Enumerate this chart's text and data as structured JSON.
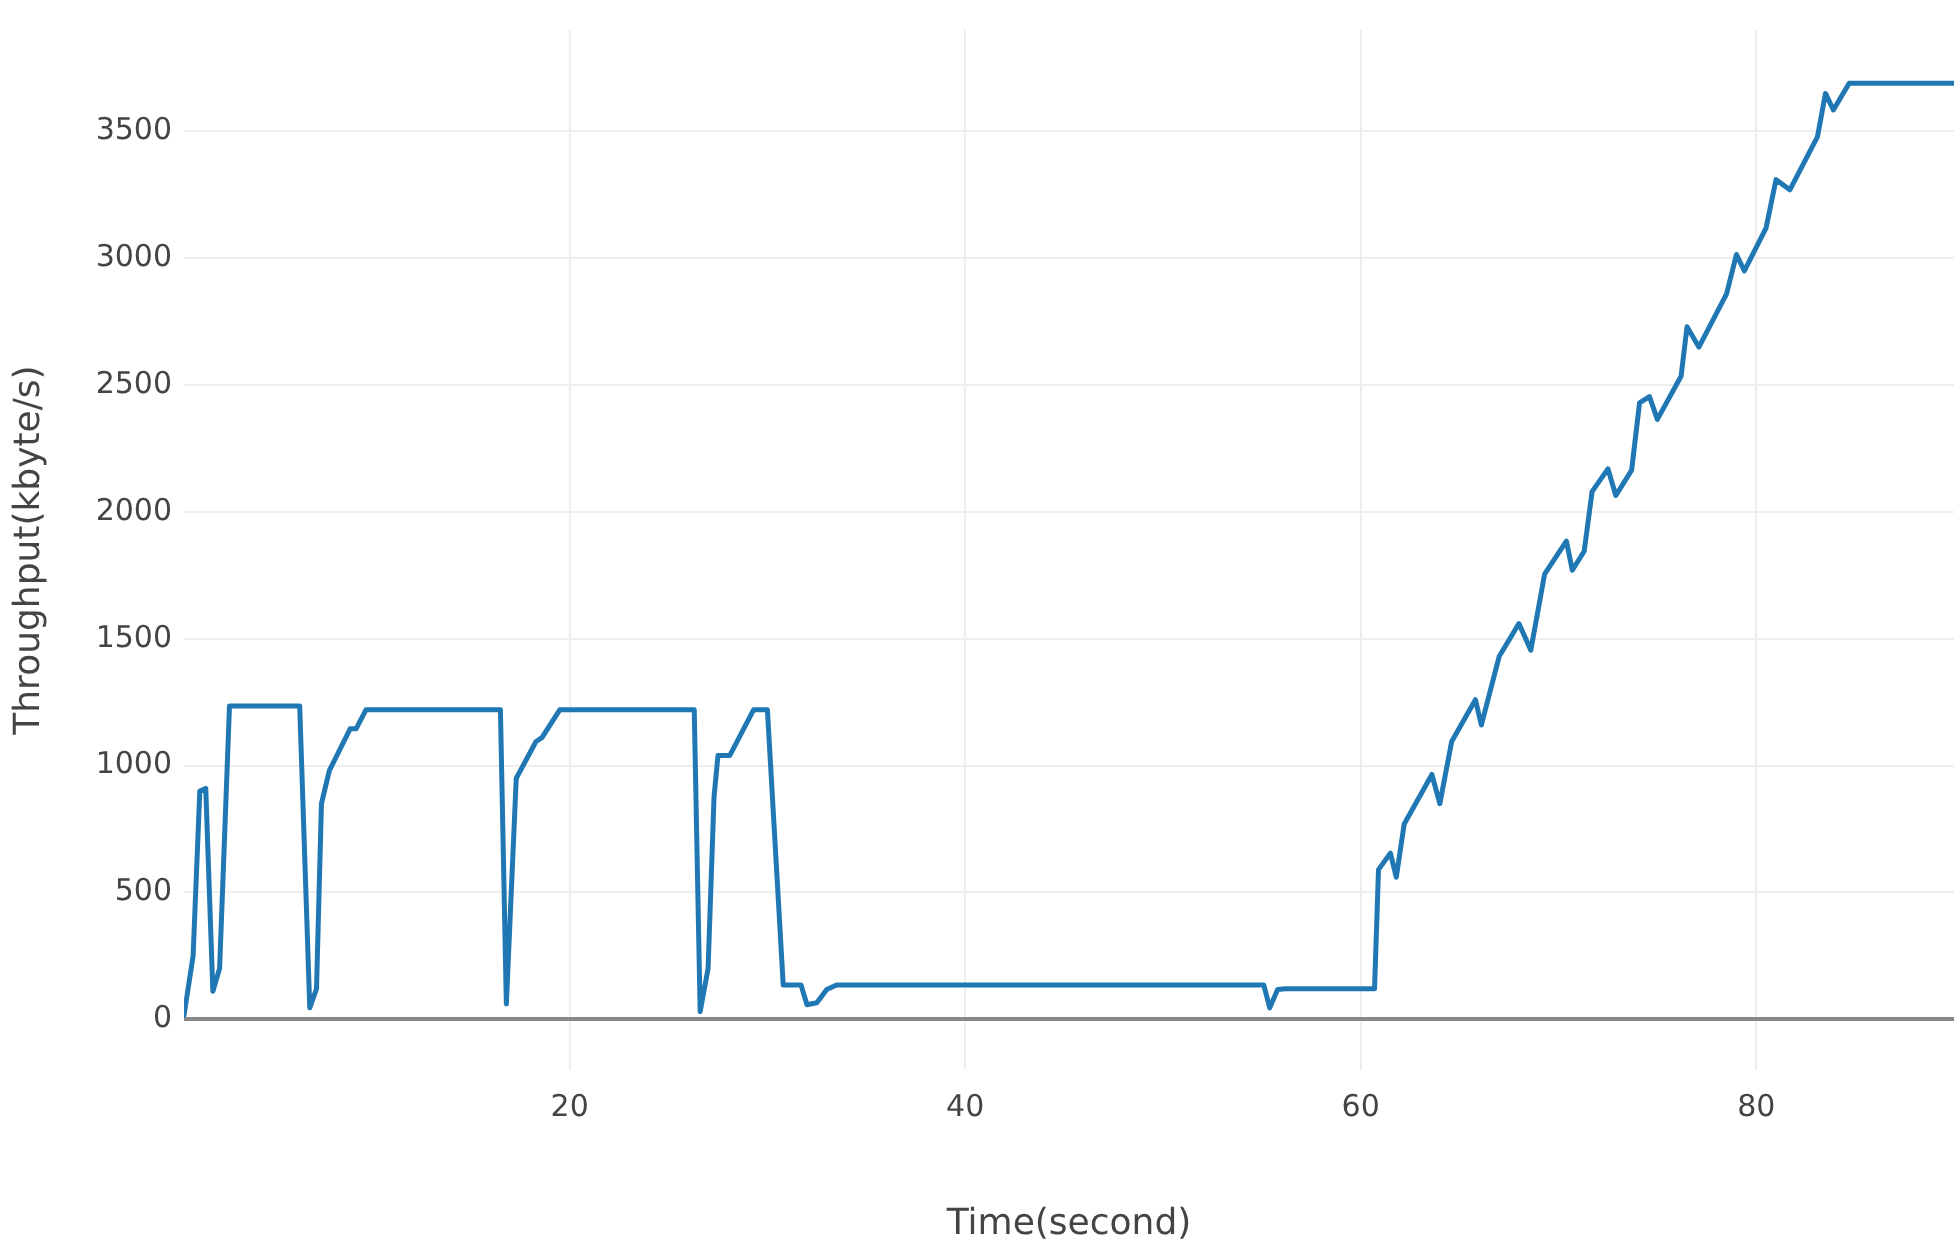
{
  "chart_data": {
    "type": "line",
    "xlabel": "Time(second)",
    "ylabel": "Throughput(kbyte/s)",
    "grid": true,
    "marker": "none",
    "line_style": "solid",
    "legend": false,
    "xlim": [
      0.5,
      90
    ],
    "xticks": [
      20,
      40,
      60,
      80
    ],
    "ylim": [
      -200,
      3900
    ],
    "yticks": [
      0,
      500,
      1000,
      1500,
      2000,
      2500,
      3000,
      3500
    ],
    "x": [
      0.5,
      0.96,
      1.3,
      1.6,
      1.96,
      2.3,
      2.8,
      6.35,
      6.86,
      7.2,
      7.45,
      7.85,
      8.9,
      9.2,
      9.7,
      16.5,
      16.8,
      17.3,
      18.3,
      18.6,
      19.5,
      26.3,
      26.6,
      27.0,
      27.3,
      27.5,
      28.1,
      29.3,
      30.0,
      30.8,
      31.7,
      32.0,
      32.5,
      33.0,
      33.5,
      55.1,
      55.4,
      55.8,
      56.2,
      60.7,
      60.9,
      61.5,
      61.8,
      62.2,
      63.6,
      64.0,
      64.6,
      65.8,
      66.1,
      67.0,
      68.0,
      68.6,
      69.3,
      70.4,
      70.7,
      71.3,
      71.7,
      72.5,
      72.9,
      73.7,
      74.1,
      74.6,
      75.0,
      76.2,
      76.5,
      77.1,
      78.5,
      79.0,
      79.4,
      80.5,
      81.0,
      81.7,
      83.1,
      83.5,
      83.9,
      84.7,
      90
    ],
    "series": [
      {
        "color": "#1f77b4",
        "values": [
          15,
          250,
          900,
          910,
          110,
          200,
          1235,
          1235,
          45,
          120,
          850,
          980,
          1145,
          1145,
          1220,
          1220,
          60,
          950,
          1095,
          1110,
          1220,
          1220,
          30,
          200,
          875,
          1040,
          1040,
          1220,
          1220,
          135,
          135,
          57,
          65,
          117,
          135,
          135,
          45,
          117,
          120,
          120,
          590,
          655,
          560,
          770,
          965,
          850,
          1095,
          1260,
          1160,
          1430,
          1560,
          1455,
          1755,
          1885,
          1770,
          1845,
          2080,
          2170,
          2065,
          2165,
          2430,
          2455,
          2365,
          2535,
          2730,
          2650,
          2860,
          3015,
          2950,
          3120,
          3310,
          3270,
          3480,
          3650,
          3585,
          3690,
          3690
        ]
      }
    ]
  }
}
